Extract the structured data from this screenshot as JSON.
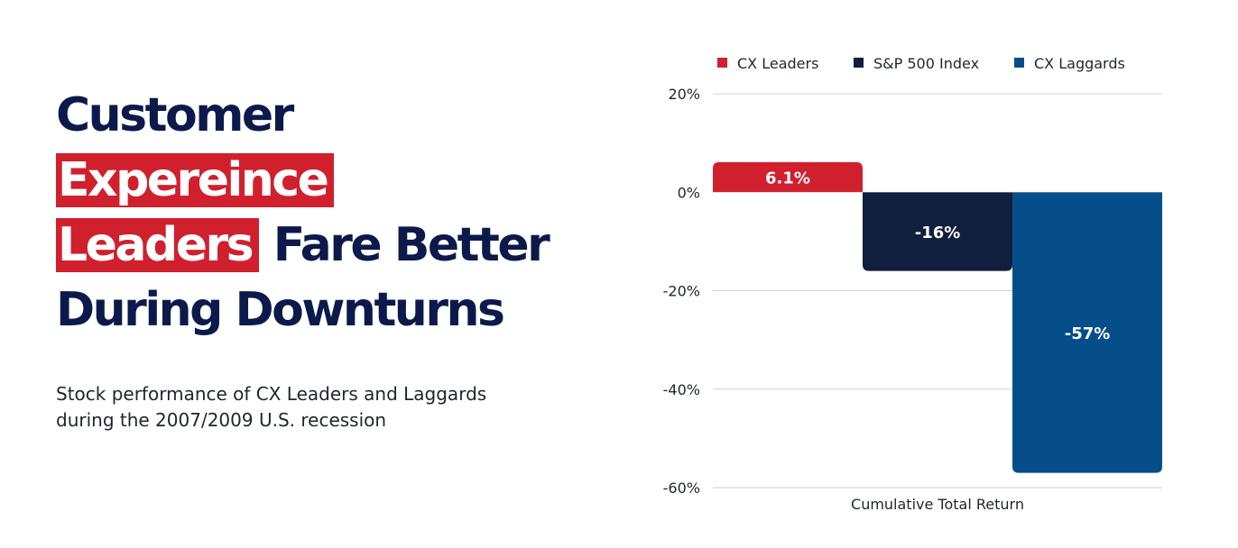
{
  "headline": {
    "line1": "Customer",
    "line2_highlight": "Expereince",
    "line3_highlight": "Leaders",
    "line3_rest": "Fare Better",
    "line4": "During Downturns"
  },
  "subtitle": {
    "line1": "Stock performance of CX Leaders and Laggards",
    "line2": "during the 2007/2009 U.S. recession"
  },
  "colors": {
    "headline": "#0b1a4a",
    "highlight": "#d0202e",
    "cx_leaders": "#d0202e",
    "sp500": "#0f1f3d",
    "cx_laggards": "#064e8a"
  },
  "chart_data": {
    "type": "bar",
    "categories": [
      "Cumulative Total Return"
    ],
    "xlabel": "Cumulative Total Return",
    "series": [
      {
        "name": "CX Leaders",
        "values": [
          6.1
        ],
        "label": "6.1%",
        "color": "#d0202e"
      },
      {
        "name": "S&P 500 Index",
        "values": [
          -16
        ],
        "label": "-16%",
        "color": "#0f1f3d"
      },
      {
        "name": "CX Laggards",
        "values": [
          -57
        ],
        "label": "-57%",
        "color": "#064e8a"
      }
    ],
    "ylim": [
      -60,
      20
    ],
    "yticks": [
      20,
      0,
      -20,
      -40,
      -60
    ],
    "ytick_labels": [
      "20%",
      "0%",
      "-20%",
      "-40%",
      "-60%"
    ],
    "grid": true,
    "legend_position": "top"
  }
}
